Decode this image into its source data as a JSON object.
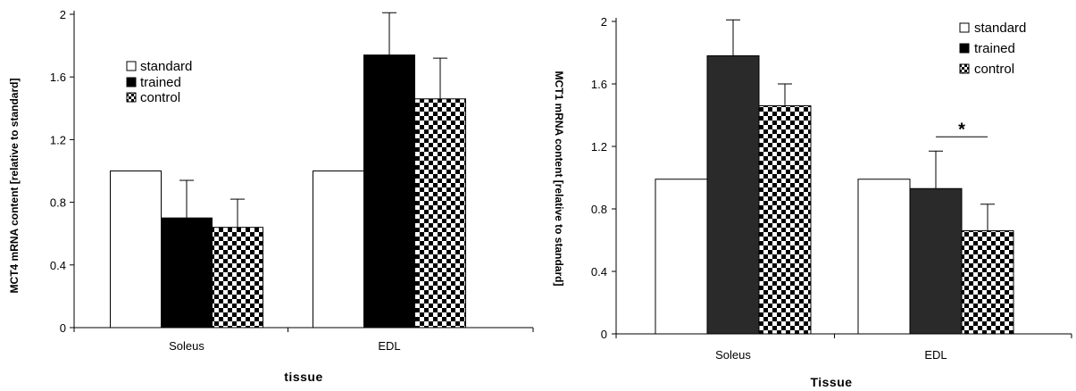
{
  "colors": {
    "standard": "#ffffff",
    "trained": "#000000",
    "trained_right": "#2a2a2a",
    "control": "checker"
  },
  "chart_data": [
    {
      "type": "bar",
      "categories": [
        "Soleus",
        "EDL"
      ],
      "series": [
        {
          "name": "standard",
          "values": [
            1.0,
            1.0
          ],
          "errors": [
            0,
            0
          ]
        },
        {
          "name": "trained",
          "values": [
            0.7,
            1.74
          ],
          "errors": [
            0.24,
            0.27
          ]
        },
        {
          "name": "control",
          "values": [
            0.64,
            1.46
          ],
          "errors": [
            0.18,
            0.26
          ]
        }
      ],
      "ylabel": "MCT4 mRNA content [relative to standard]",
      "xlabel": "tissue",
      "ylim": [
        0,
        2.0
      ],
      "yticks": [
        "0",
        "0.4",
        "0.8",
        "1.2",
        "1.6",
        "2"
      ],
      "significance": [
        {
          "category": "EDL",
          "between": [
            "trained",
            "control"
          ],
          "label": "*"
        }
      ],
      "legend": "top-left",
      "grid": false
    },
    {
      "type": "bar",
      "categories": [
        "Soleus",
        "EDL"
      ],
      "series": [
        {
          "name": "standard",
          "values": [
            0.99,
            0.99
          ],
          "errors": [
            0,
            0
          ]
        },
        {
          "name": "trained",
          "values": [
            1.78,
            0.93
          ],
          "errors": [
            0.23,
            0.24
          ]
        },
        {
          "name": "control",
          "values": [
            1.46,
            0.66
          ],
          "errors": [
            0.14,
            0.17
          ]
        }
      ],
      "ylabel": "MCT1 mRNA content [relative to standard]",
      "xlabel": "Tissue",
      "ylim": [
        0,
        2.0
      ],
      "yticks": [
        "0",
        "0.4",
        "0.8",
        "1.2",
        "1.6",
        "2"
      ],
      "significance": [
        {
          "category": "EDL",
          "between": [
            "trained",
            "control"
          ],
          "label": "*"
        }
      ],
      "legend": "top-right",
      "grid": false
    }
  ]
}
